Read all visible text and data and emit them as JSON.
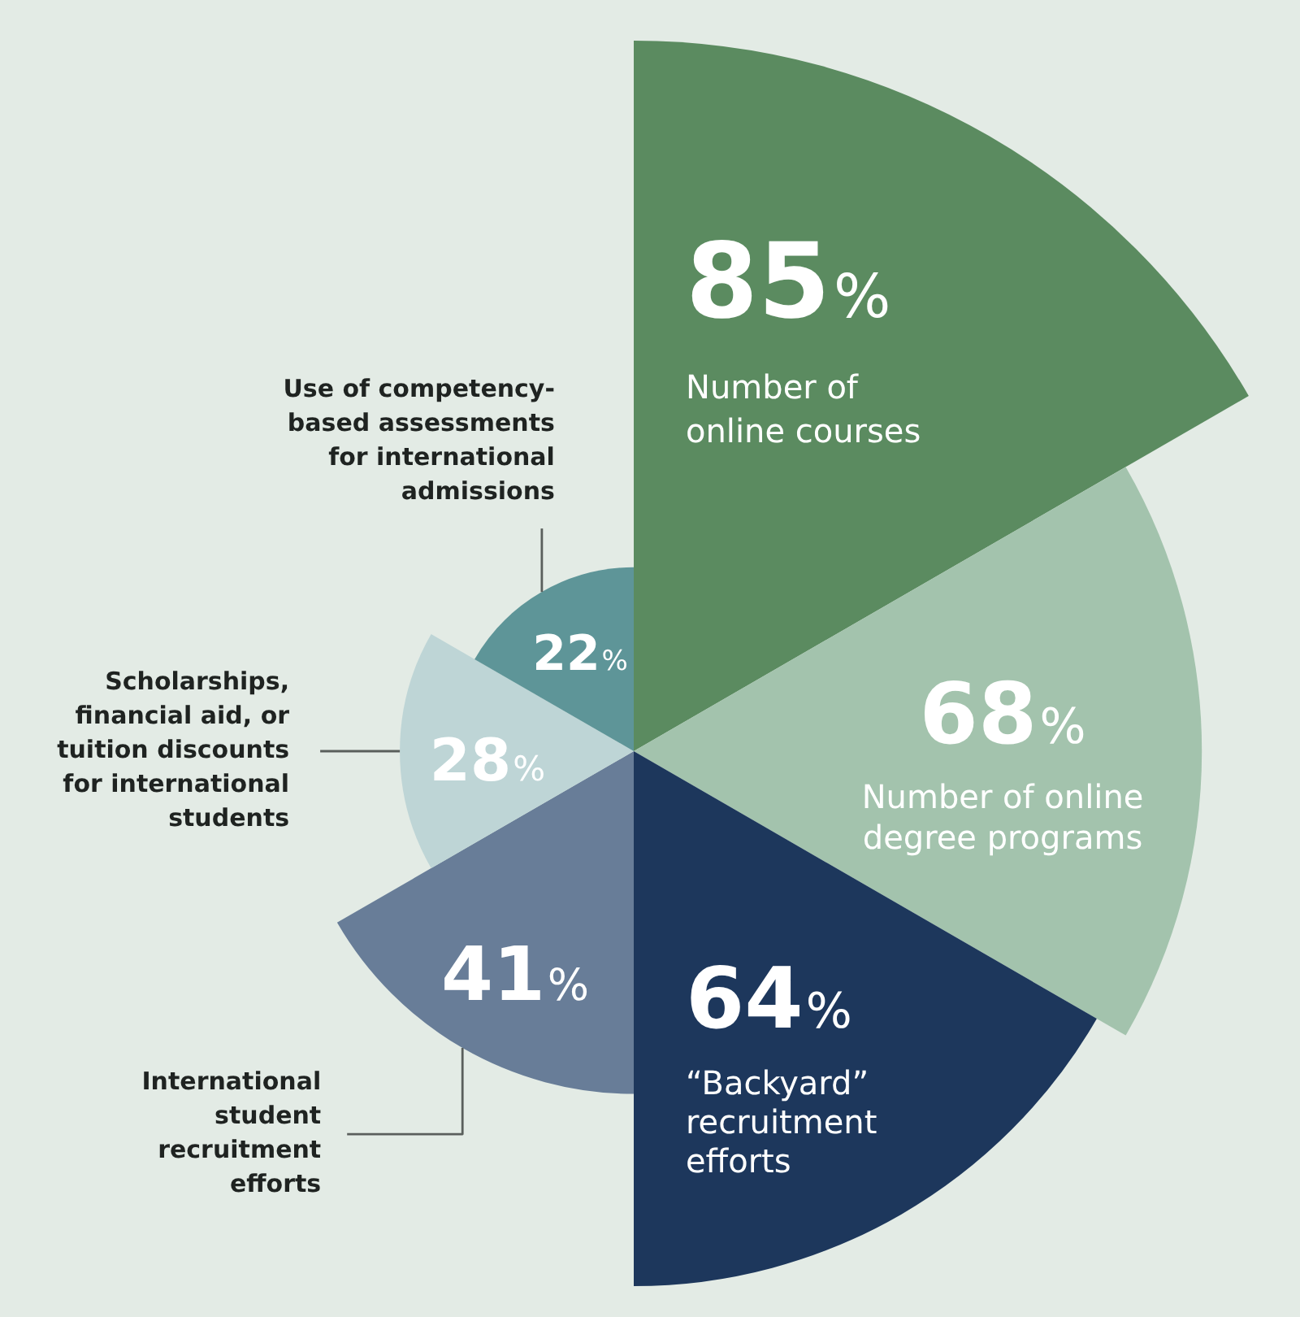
{
  "chart_data": {
    "type": "other",
    "categories": [
      "Number of online courses",
      "Number of online degree programs",
      "“Backyard” recruitment efforts",
      "International student recruitment efforts",
      "Scholarships, financial aid, or tuition discounts for international students",
      "Use of competency-based assessments for international admissions"
    ],
    "values": [
      85,
      68,
      64,
      41,
      28,
      22
    ],
    "value_labels": [
      "85%",
      "68%",
      "64%",
      "41%",
      "28%",
      "22%"
    ],
    "colors": [
      "#5b8b60",
      "#a3c3ad",
      "#1d375c",
      "#687d98",
      "#bed5d6",
      "#5e9598"
    ]
  }
}
